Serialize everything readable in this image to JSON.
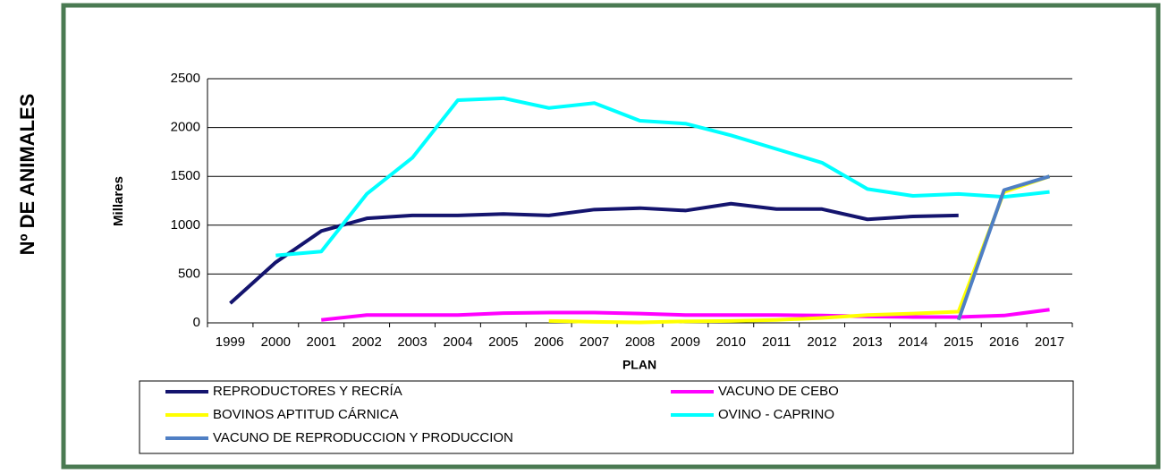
{
  "chart_data": {
    "type": "line",
    "side_label": "Nº DE ANIMALES",
    "y_label": "Millares",
    "x_label": "PLAN",
    "categories": [
      "1999",
      "2000",
      "2001",
      "2002",
      "2003",
      "2004",
      "2005",
      "2006",
      "2007",
      "2008",
      "2009",
      "2010",
      "2011",
      "2012",
      "2013",
      "2014",
      "2015",
      "2016",
      "2017"
    ],
    "series": [
      {
        "name": "REPRODUCTORES Y RECRÍA",
        "color": "#14146e",
        "values": [
          200,
          620,
          940,
          1070,
          1100,
          1100,
          1115,
          1100,
          1160,
          1175,
          1150,
          1220,
          1165,
          1165,
          1060,
          1090,
          1100,
          null,
          null
        ]
      },
      {
        "name": "VACUNO DE CEBO",
        "color": "#ff00ff",
        "values": [
          null,
          null,
          30,
          80,
          80,
          80,
          100,
          105,
          105,
          95,
          80,
          80,
          80,
          75,
          65,
          60,
          60,
          75,
          135
        ]
      },
      {
        "name": "BOVINOS APTITUD CÁRNICA",
        "color": "#ffff00",
        "values": [
          null,
          null,
          null,
          null,
          null,
          null,
          null,
          20,
          10,
          5,
          15,
          20,
          30,
          50,
          80,
          95,
          115,
          1340,
          1500
        ]
      },
      {
        "name": "OVINO - CAPRINO",
        "color": "#00ffff",
        "values": [
          null,
          690,
          730,
          1320,
          1690,
          2280,
          2300,
          2200,
          2250,
          2070,
          2040,
          1920,
          1780,
          1640,
          1370,
          1300,
          1320,
          1290,
          1340
        ]
      },
      {
        "name": "VACUNO DE REPRODUCCION Y PRODUCCION",
        "color": "#4f7fc4",
        "values": [
          null,
          null,
          null,
          null,
          null,
          null,
          null,
          null,
          null,
          null,
          null,
          null,
          null,
          null,
          null,
          null,
          30,
          1360,
          1500
        ]
      }
    ],
    "ylim": [
      0,
      2500
    ],
    "yticks": [
      0,
      500,
      1000,
      1500,
      2000,
      2500
    ],
    "grid": true
  }
}
